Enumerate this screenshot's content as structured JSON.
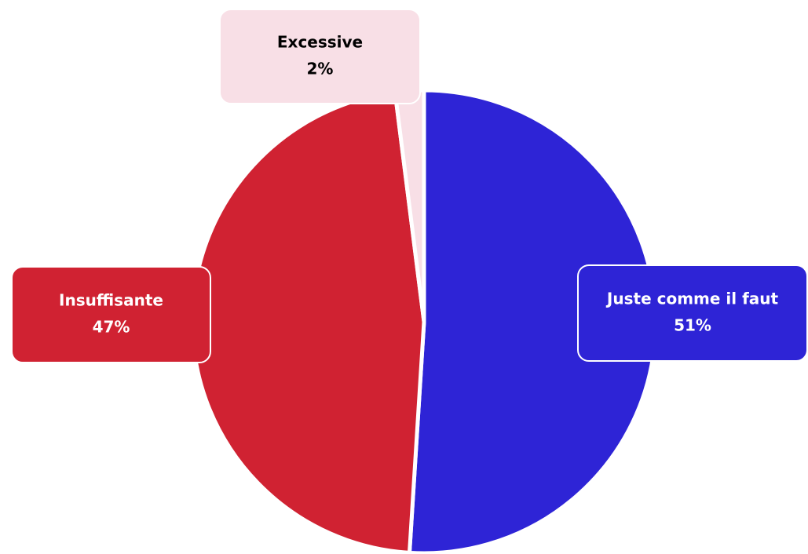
{
  "chart_data": {
    "type": "pie",
    "categories": [
      "Juste comme il faut",
      "Insuffisante",
      "Excessive"
    ],
    "values": [
      51,
      47,
      2
    ],
    "value_labels": [
      "51%",
      "47%",
      "2%"
    ],
    "colors": [
      "#2e24d6",
      "#d02232",
      "#f8dfe6"
    ]
  }
}
